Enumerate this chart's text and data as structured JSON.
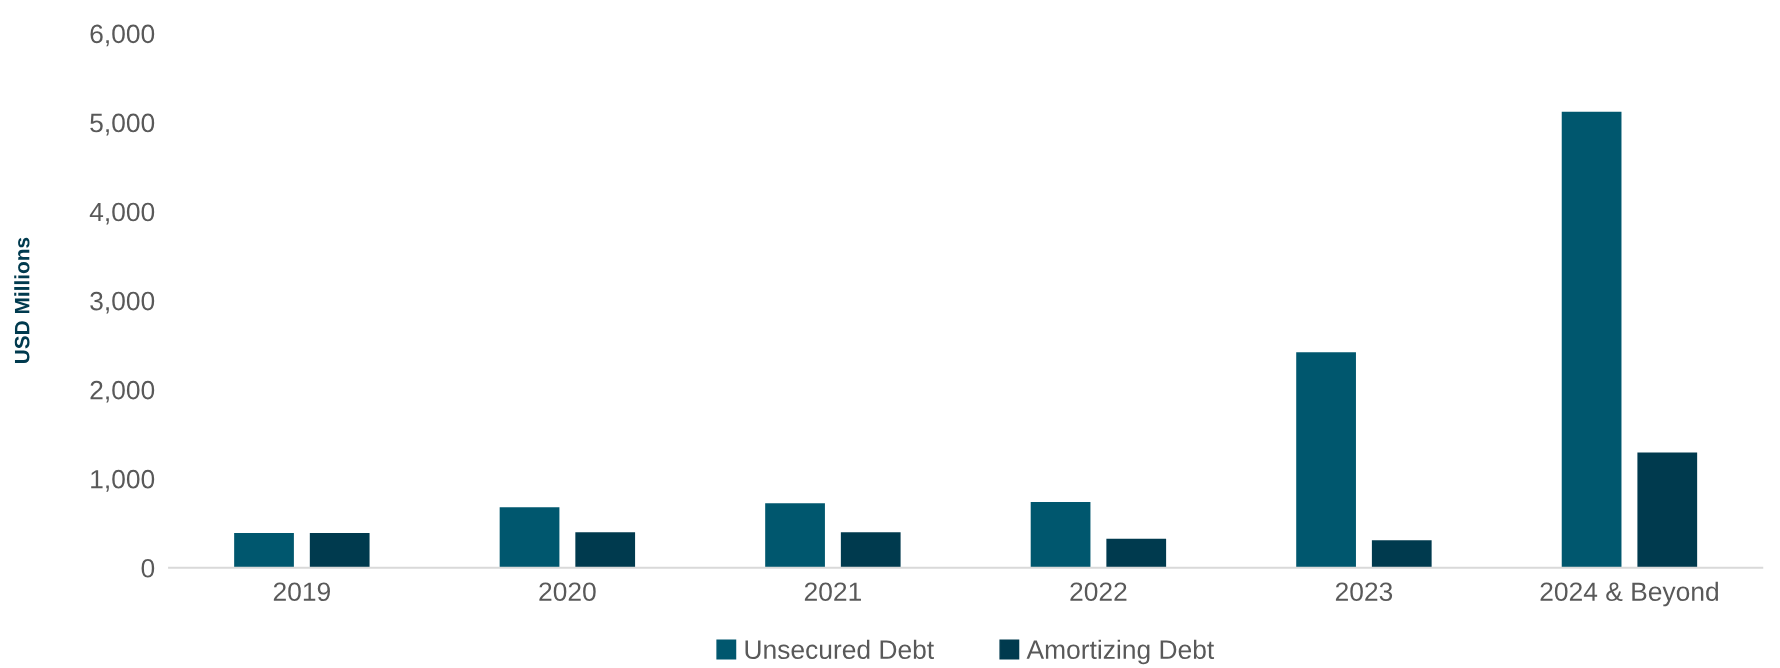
{
  "chart_data": {
    "type": "bar",
    "ylabel": "USD Millions",
    "categories": [
      "2019",
      "2020",
      "2021",
      "2022",
      "2023",
      "2024 & Beyond"
    ],
    "series": [
      {
        "name": "Unsecured Debt",
        "color": "#00576e",
        "values": [
          390,
          680,
          725,
          740,
          2420,
          5120
        ]
      },
      {
        "name": "Amortizing Debt",
        "color": "#003a4e",
        "values": [
          390,
          400,
          400,
          325,
          310,
          1295
        ]
      }
    ],
    "ylim": [
      0,
      6000
    ],
    "yticks": [
      {
        "value": 0,
        "label": "0"
      },
      {
        "value": 1000,
        "label": "1,000"
      },
      {
        "value": 2000,
        "label": "2,000"
      },
      {
        "value": 3000,
        "label": "3,000"
      },
      {
        "value": 4000,
        "label": "4,000"
      },
      {
        "value": 5000,
        "label": "5,000"
      },
      {
        "value": 6000,
        "label": "6,000"
      }
    ],
    "grid": false,
    "legend": "bottom"
  }
}
